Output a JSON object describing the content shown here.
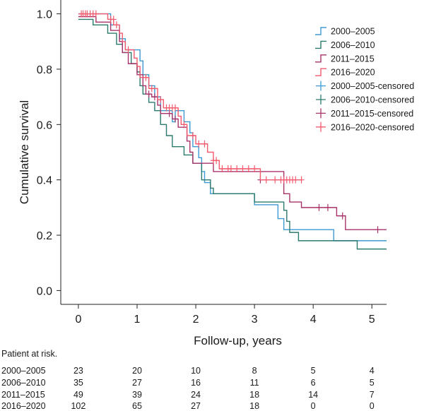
{
  "chart_data": {
    "type": "line",
    "subtype": "kaplan-meier step curve with censor marks",
    "xlabel": "Follow-up, years",
    "ylabel": "Cumulative survival",
    "xlim": [
      -0.3,
      5.25
    ],
    "ylim": [
      -0.05,
      1.05
    ],
    "xticks": [
      0,
      1,
      2,
      3,
      4,
      5
    ],
    "yticks": [
      0.0,
      0.2,
      0.4,
      0.6,
      0.8,
      1.0
    ],
    "ytick_labels": [
      "0.0",
      "0.2",
      "0.4",
      "0.6",
      "0.8",
      "1.0"
    ],
    "grid": false,
    "legend_position": "top-right",
    "legend": [
      {
        "label": "2000–2005",
        "kind": "line",
        "color": "#3d9ad4"
      },
      {
        "label": "2006–2010",
        "kind": "line",
        "color": "#2b7a6e"
      },
      {
        "label": "2011–2015",
        "kind": "line",
        "color": "#a8336a"
      },
      {
        "label": "2016–2020",
        "kind": "line",
        "color": "#f25a6e"
      },
      {
        "label": "2000–2005-censored",
        "kind": "cross",
        "color": "#3d9ad4"
      },
      {
        "label": "2006–2010-censored",
        "kind": "cross",
        "color": "#2b7a6e"
      },
      {
        "label": "2011–2015-censored",
        "kind": "cross",
        "color": "#a8336a"
      },
      {
        "label": "2016–2020-censored",
        "kind": "cross",
        "color": "#f25a6e"
      }
    ],
    "series": [
      {
        "name": "2000–2005",
        "color": "#3d9ad4",
        "steps": [
          [
            0,
            1.0
          ],
          [
            0.55,
            0.96
          ],
          [
            0.7,
            0.91
          ],
          [
            0.8,
            0.87
          ],
          [
            1.05,
            0.83
          ],
          [
            1.1,
            0.78
          ],
          [
            1.2,
            0.74
          ],
          [
            1.3,
            0.7
          ],
          [
            1.4,
            0.65
          ],
          [
            1.6,
            0.61
          ],
          [
            1.65,
            0.65
          ],
          [
            1.8,
            0.61
          ],
          [
            1.9,
            0.57
          ],
          [
            1.95,
            0.52
          ],
          [
            2.05,
            0.48
          ],
          [
            2.1,
            0.43
          ],
          [
            2.15,
            0.39
          ],
          [
            2.25,
            0.35
          ],
          [
            3.0,
            0.31
          ],
          [
            3.4,
            0.26
          ],
          [
            3.5,
            0.22
          ],
          [
            3.85,
            0.22
          ],
          [
            4.35,
            0.18
          ],
          [
            5.25,
            0.18
          ]
        ],
        "censored": []
      },
      {
        "name": "2006–2010",
        "color": "#2b7a6e",
        "steps": [
          [
            0,
            0.98
          ],
          [
            0.25,
            0.96
          ],
          [
            0.5,
            0.93
          ],
          [
            0.65,
            0.89
          ],
          [
            0.75,
            0.86
          ],
          [
            0.9,
            0.82
          ],
          [
            1.0,
            0.79
          ],
          [
            1.05,
            0.74
          ],
          [
            1.1,
            0.71
          ],
          [
            1.2,
            0.68
          ],
          [
            1.3,
            0.65
          ],
          [
            1.4,
            0.6
          ],
          [
            1.5,
            0.56
          ],
          [
            1.6,
            0.52
          ],
          [
            1.8,
            0.49
          ],
          [
            1.95,
            0.46
          ],
          [
            2.1,
            0.4
          ],
          [
            2.25,
            0.37
          ],
          [
            2.3,
            0.35
          ],
          [
            3.0,
            0.32
          ],
          [
            3.2,
            0.32
          ],
          [
            3.5,
            0.29
          ],
          [
            3.55,
            0.25
          ],
          [
            3.6,
            0.21
          ],
          [
            3.75,
            0.18
          ],
          [
            4.75,
            0.15
          ],
          [
            5.25,
            0.15
          ]
        ],
        "censored": []
      },
      {
        "name": "2011–2015",
        "color": "#a8336a",
        "steps": [
          [
            0,
            0.99
          ],
          [
            0.3,
            0.97
          ],
          [
            0.55,
            0.94
          ],
          [
            0.7,
            0.9
          ],
          [
            0.75,
            0.86
          ],
          [
            0.85,
            0.82
          ],
          [
            1.0,
            0.78
          ],
          [
            1.1,
            0.74
          ],
          [
            1.15,
            0.71
          ],
          [
            1.25,
            0.7
          ],
          [
            1.35,
            0.67
          ],
          [
            1.4,
            0.64
          ],
          [
            1.6,
            0.62
          ],
          [
            1.7,
            0.59
          ],
          [
            1.85,
            0.54
          ],
          [
            1.9,
            0.5
          ],
          [
            1.95,
            0.46
          ],
          [
            2.1,
            0.46
          ],
          [
            2.3,
            0.43
          ],
          [
            3.5,
            0.35
          ],
          [
            3.6,
            0.32
          ],
          [
            3.8,
            0.3
          ],
          [
            4.4,
            0.27
          ],
          [
            4.55,
            0.22
          ],
          [
            5.25,
            0.22
          ]
        ],
        "censored": [
          [
            1.2,
            0.71
          ],
          [
            1.3,
            0.7
          ],
          [
            1.55,
            0.64
          ],
          [
            1.65,
            0.62
          ],
          [
            3.1,
            0.4
          ],
          [
            4.1,
            0.3
          ],
          [
            4.25,
            0.3
          ],
          [
            4.5,
            0.27
          ],
          [
            5.1,
            0.22
          ]
        ]
      },
      {
        "name": "2016–2020",
        "color": "#f25a6e",
        "steps": [
          [
            0,
            1.0
          ],
          [
            0.5,
            0.98
          ],
          [
            0.6,
            0.96
          ],
          [
            0.7,
            0.93
          ],
          [
            0.75,
            0.9
          ],
          [
            0.8,
            0.87
          ],
          [
            0.95,
            0.84
          ],
          [
            1.0,
            0.81
          ],
          [
            1.05,
            0.77
          ],
          [
            1.2,
            0.73
          ],
          [
            1.35,
            0.69
          ],
          [
            1.45,
            0.66
          ],
          [
            1.7,
            0.63
          ],
          [
            1.75,
            0.6
          ],
          [
            1.85,
            0.56
          ],
          [
            2.0,
            0.53
          ],
          [
            2.2,
            0.5
          ],
          [
            2.3,
            0.47
          ],
          [
            2.4,
            0.44
          ],
          [
            3.1,
            0.4
          ],
          [
            3.8,
            0.4
          ]
        ],
        "censored": [
          [
            0.05,
            1.0
          ],
          [
            0.08,
            1.0
          ],
          [
            0.12,
            1.0
          ],
          [
            0.15,
            1.0
          ],
          [
            0.2,
            1.0
          ],
          [
            0.25,
            1.0
          ],
          [
            0.3,
            1.0
          ],
          [
            0.55,
            0.98
          ],
          [
            0.6,
            0.98
          ],
          [
            0.65,
            0.96
          ],
          [
            0.85,
            0.87
          ],
          [
            1.15,
            0.77
          ],
          [
            1.25,
            0.73
          ],
          [
            1.4,
            0.69
          ],
          [
            1.5,
            0.66
          ],
          [
            1.55,
            0.66
          ],
          [
            1.6,
            0.66
          ],
          [
            1.65,
            0.66
          ],
          [
            1.8,
            0.6
          ],
          [
            1.95,
            0.56
          ],
          [
            2.05,
            0.53
          ],
          [
            2.15,
            0.53
          ],
          [
            2.3,
            0.47
          ],
          [
            2.35,
            0.47
          ],
          [
            2.45,
            0.44
          ],
          [
            2.55,
            0.44
          ],
          [
            2.6,
            0.44
          ],
          [
            2.7,
            0.44
          ],
          [
            2.8,
            0.44
          ],
          [
            2.9,
            0.44
          ],
          [
            3.0,
            0.44
          ],
          [
            3.2,
            0.4
          ],
          [
            3.35,
            0.4
          ],
          [
            3.45,
            0.4
          ],
          [
            3.5,
            0.4
          ],
          [
            3.55,
            0.4
          ],
          [
            3.6,
            0.4
          ],
          [
            3.65,
            0.4
          ],
          [
            3.7,
            0.4
          ],
          [
            3.8,
            0.4
          ]
        ]
      }
    ]
  },
  "risk_table": {
    "title": "Patient at risk.",
    "times": [
      0,
      1,
      2,
      3,
      4,
      5
    ],
    "rows": [
      {
        "label": "2000–2005",
        "values": [
          "23",
          "20",
          "10",
          "8",
          "5",
          "4"
        ]
      },
      {
        "label": "2006–2010",
        "values": [
          "35",
          "27",
          "16",
          "11",
          "6",
          "5"
        ]
      },
      {
        "label": "2011–2015",
        "values": [
          "49",
          "39",
          "24",
          "18",
          "14",
          "7"
        ]
      },
      {
        "label": "2016–2020",
        "values": [
          "102",
          "65",
          "27",
          "18",
          "0",
          "0"
        ]
      }
    ]
  }
}
